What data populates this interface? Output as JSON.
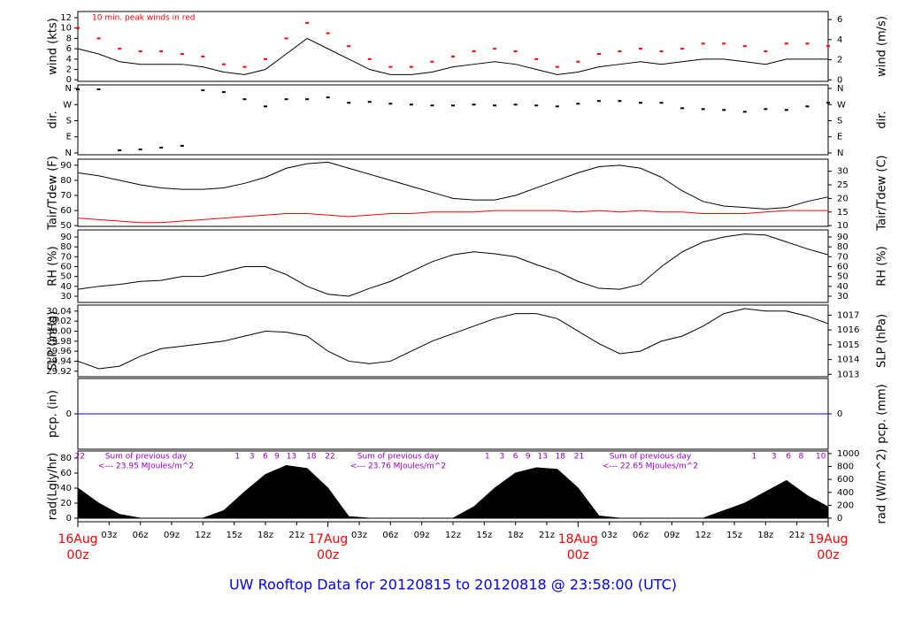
{
  "footer_title": "UW Rooftop Data for 20120815  to  20120818 @ 23:58:00  (UTC)",
  "chart_data": [
    {
      "type": "line",
      "ylabel": "wind (kts)",
      "y2label": "wind (m/s)",
      "annotation": "10 min. peak winds in red",
      "x": [
        0,
        2,
        4,
        6,
        8,
        10,
        12,
        14,
        16,
        18,
        20,
        22,
        24,
        26,
        28,
        30,
        32,
        34,
        36,
        38,
        40,
        42,
        44,
        46,
        48,
        50,
        52,
        54,
        56,
        58,
        60,
        62,
        64,
        66,
        68,
        70,
        72
      ],
      "xlim": [
        0,
        72
      ],
      "ylim": [
        -0.3,
        13.2
      ],
      "yticks": [
        0,
        2,
        4,
        6,
        8,
        10,
        12
      ],
      "y2lim": [
        -0.15,
        6.8
      ],
      "y2ticks": [
        0,
        2,
        4,
        6
      ],
      "series": [
        {
          "color": "#000000",
          "values": [
            6,
            5,
            3.5,
            3,
            3,
            3,
            2.5,
            1.5,
            1,
            2,
            5,
            8,
            6,
            4,
            2,
            1,
            1,
            1.5,
            2.5,
            3,
            3.5,
            3,
            2,
            1,
            1.5,
            2.5,
            3,
            3.5,
            3,
            3.5,
            4,
            4,
            3.5,
            3,
            4,
            4,
            4
          ]
        },
        {
          "color": "#ff0000",
          "style": "dots",
          "values": [
            10,
            8,
            6,
            5.5,
            5.5,
            5,
            4.5,
            3,
            2.5,
            4,
            8,
            11,
            9,
            6.5,
            4,
            2.5,
            2.5,
            3.5,
            4.5,
            5.5,
            6,
            5.5,
            4,
            2.5,
            3.5,
            5,
            5.5,
            6,
            5.5,
            6,
            7,
            7,
            6.5,
            5.5,
            7,
            7,
            6.5
          ]
        }
      ]
    },
    {
      "type": "scatter",
      "ylabel": "dir.",
      "y2label": "dir.",
      "x": [
        0,
        2,
        4,
        6,
        8,
        10,
        12,
        14,
        16,
        18,
        20,
        22,
        24,
        26,
        28,
        30,
        32,
        34,
        36,
        38,
        40,
        42,
        44,
        46,
        48,
        50,
        52,
        54,
        56,
        58,
        60,
        62,
        64,
        66,
        68,
        70,
        72
      ],
      "xlim": [
        0,
        72
      ],
      "ylim": [
        -10,
        380
      ],
      "yticks": [
        {
          "value": 0,
          "label": "N"
        },
        {
          "value": 90,
          "label": "E"
        },
        {
          "value": 180,
          "label": "S"
        },
        {
          "value": 270,
          "label": "W"
        },
        {
          "value": 360,
          "label": "N"
        }
      ],
      "y2lim": [
        -10,
        380
      ],
      "y2ticks": [
        {
          "value": 0,
          "label": "N"
        },
        {
          "value": 90,
          "label": "E"
        },
        {
          "value": 180,
          "label": "S"
        },
        {
          "value": 270,
          "label": "W"
        },
        {
          "value": 360,
          "label": "N"
        }
      ],
      "series": [
        {
          "color": "#000000",
          "values": [
            355,
            355,
            15,
            20,
            30,
            40,
            350,
            340,
            300,
            260,
            300,
            300,
            310,
            280,
            285,
            275,
            270,
            265,
            265,
            270,
            265,
            270,
            265,
            260,
            275,
            290,
            290,
            280,
            280,
            250,
            245,
            240,
            230,
            245,
            240,
            260,
            280
          ]
        }
      ]
    },
    {
      "type": "line",
      "ylabel": "Tair/Tdew (F)",
      "y2label": "Tair/Tdew (C)",
      "x": [
        0,
        2,
        4,
        6,
        8,
        10,
        12,
        14,
        16,
        18,
        20,
        22,
        24,
        26,
        28,
        30,
        32,
        34,
        36,
        38,
        40,
        42,
        44,
        46,
        48,
        50,
        52,
        54,
        56,
        58,
        60,
        62,
        64,
        66,
        68,
        70,
        72
      ],
      "xlim": [
        0,
        72
      ],
      "ylim": [
        49.5,
        94
      ],
      "yticks": [
        50,
        60,
        70,
        80,
        90
      ],
      "y2lim": [
        9.72,
        34.44
      ],
      "y2ticks": [
        10,
        15,
        20,
        25,
        30
      ],
      "series": [
        {
          "color": "#000000",
          "values": [
            85,
            83,
            80,
            77,
            75,
            74,
            74,
            75,
            78,
            82,
            88,
            91,
            92,
            88,
            84,
            80,
            76,
            72,
            68,
            67,
            67,
            70,
            75,
            80,
            85,
            89,
            90,
            88,
            82,
            73,
            66,
            63,
            62,
            61,
            62,
            66,
            69
          ]
        },
        {
          "color": "#ff0000",
          "values": [
            55,
            54,
            53,
            52,
            52,
            53,
            54,
            55,
            56,
            57,
            58,
            58,
            57,
            56,
            57,
            58,
            58,
            59,
            59,
            59,
            60,
            60,
            60,
            60,
            59,
            60,
            59,
            60,
            59,
            59,
            58,
            58,
            58,
            59,
            60,
            60,
            60
          ]
        }
      ]
    },
    {
      "type": "line",
      "ylabel": "RH (%)",
      "y2label": "RH (%)",
      "x": [
        0,
        2,
        4,
        6,
        8,
        10,
        12,
        14,
        16,
        18,
        20,
        22,
        24,
        26,
        28,
        30,
        32,
        34,
        36,
        38,
        40,
        42,
        44,
        46,
        48,
        50,
        52,
        54,
        56,
        58,
        60,
        62,
        64,
        66,
        68,
        70,
        72
      ],
      "xlim": [
        0,
        72
      ],
      "ylim": [
        23.7,
        97.2
      ],
      "yticks": [
        30,
        40,
        50,
        60,
        70,
        80,
        90
      ],
      "y2lim": [
        23.7,
        97.2
      ],
      "y2ticks": [
        30,
        40,
        50,
        60,
        70,
        80,
        90
      ],
      "series": [
        {
          "color": "#000000",
          "values": [
            37,
            40,
            42,
            45,
            46,
            50,
            50,
            55,
            60,
            60,
            52,
            40,
            32,
            30,
            38,
            45,
            55,
            65,
            72,
            75,
            73,
            70,
            62,
            55,
            45,
            38,
            37,
            42,
            60,
            75,
            85,
            90,
            93,
            92,
            85,
            78,
            72
          ]
        }
      ]
    },
    {
      "type": "line",
      "ylabel": "SLP (inHg)",
      "y2label": "SLP (hPa)",
      "x": [
        0,
        2,
        4,
        6,
        8,
        10,
        12,
        14,
        16,
        18,
        20,
        22,
        24,
        26,
        28,
        30,
        32,
        34,
        36,
        38,
        40,
        42,
        44,
        46,
        48,
        50,
        52,
        54,
        56,
        58,
        60,
        62,
        64,
        66,
        68,
        70,
        72
      ],
      "xlim": [
        0,
        72
      ],
      "ylim": [
        29.909,
        30.052
      ],
      "yticks": [
        29.92,
        29.94,
        29.96,
        29.98,
        {
          "value": 30.0,
          "label": "30.00"
        },
        30.02,
        30.04
      ],
      "y2lim": [
        1012.84,
        1017.68
      ],
      "y2ticks": [
        1013,
        1014,
        1015,
        1016,
        1017
      ],
      "series": [
        {
          "color": "#000000",
          "values": [
            29.94,
            29.925,
            29.93,
            29.95,
            29.965,
            29.97,
            29.975,
            29.98,
            29.99,
            30.0,
            29.998,
            29.99,
            29.96,
            29.94,
            29.935,
            29.94,
            29.96,
            29.98,
            29.995,
            30.01,
            30.025,
            30.035,
            30.035,
            30.025,
            30.0,
            29.975,
            29.955,
            29.96,
            29.98,
            29.99,
            30.01,
            30.035,
            30.045,
            30.04,
            30.04,
            30.03,
            30.015
          ]
        }
      ]
    },
    {
      "type": "line",
      "ylabel": "pcp. (in)",
      "y2label": "pcp. (mm)",
      "x": [
        0,
        2,
        4,
        6,
        8,
        10,
        12,
        14,
        16,
        18,
        20,
        22,
        24,
        26,
        28,
        30,
        32,
        34,
        36,
        38,
        40,
        42,
        44,
        46,
        48,
        50,
        52,
        54,
        56,
        58,
        60,
        62,
        64,
        66,
        68,
        70,
        72
      ],
      "xlim": [
        0,
        72
      ],
      "ylim": [
        -1,
        1
      ],
      "yticks": [
        0
      ],
      "y2lim": [
        -1,
        1
      ],
      "y2ticks": [
        0
      ],
      "series": [
        {
          "color": "#0000ff",
          "values": [
            0,
            0,
            0,
            0,
            0,
            0,
            0,
            0,
            0,
            0,
            0,
            0,
            0,
            0,
            0,
            0,
            0,
            0,
            0,
            0,
            0,
            0,
            0,
            0,
            0,
            0,
            0,
            0,
            0,
            0,
            0,
            0,
            0,
            0,
            0,
            0,
            0
          ]
        }
      ]
    },
    {
      "type": "area",
      "ylabel": "rad(Lgly/hr)",
      "y2label": "rad (W/m^2)",
      "x": [
        0,
        2,
        4,
        6,
        8,
        10,
        12,
        14,
        16,
        18,
        20,
        22,
        24,
        26,
        28,
        30,
        32,
        34,
        36,
        38,
        40,
        42,
        44,
        46,
        48,
        50,
        52,
        54,
        56,
        58,
        60,
        62,
        64,
        66,
        68,
        70,
        72
      ],
      "xlim": [
        0,
        72
      ],
      "ylim": [
        -4.7,
        89.4
      ],
      "yticks": [
        0,
        20,
        40,
        60,
        80
      ],
      "y2lim": [
        -54.7,
        1040
      ],
      "y2ticks": [
        0,
        200,
        400,
        600,
        800,
        1000
      ],
      "series": [
        {
          "color": "#000000",
          "values": [
            40,
            20,
            5,
            0,
            0,
            0,
            0,
            10,
            35,
            58,
            70,
            66,
            40,
            2,
            0,
            0,
            0,
            0,
            0,
            15,
            40,
            60,
            67,
            65,
            40,
            3,
            0,
            0,
            0,
            0,
            0,
            10,
            20,
            35,
            50,
            30,
            15
          ]
        }
      ],
      "xticks": [
        {
          "value": 3,
          "label": "03z"
        },
        {
          "value": 6,
          "label": "06z"
        },
        {
          "value": 9,
          "label": "09z"
        },
        {
          "value": 12,
          "label": "12z"
        },
        {
          "value": 15,
          "label": "15z"
        },
        {
          "value": 18,
          "label": "18z"
        },
        {
          "value": 21,
          "label": "21z"
        },
        {
          "value": 27,
          "label": "03z"
        },
        {
          "value": 30,
          "label": "06z"
        },
        {
          "value": 33,
          "label": "09z"
        },
        {
          "value": 36,
          "label": "12z"
        },
        {
          "value": 39,
          "label": "15z"
        },
        {
          "value": 42,
          "label": "18z"
        },
        {
          "value": 45,
          "label": "21z"
        },
        {
          "value": 51,
          "label": "03z"
        },
        {
          "value": 54,
          "label": "06z"
        },
        {
          "value": 57,
          "label": "09z"
        },
        {
          "value": 60,
          "label": "12z"
        },
        {
          "value": 63,
          "label": "15z"
        },
        {
          "value": 66,
          "label": "18z"
        },
        {
          "value": 69,
          "label": "21z"
        }
      ],
      "day_ticks": [
        {
          "value": 0,
          "label": "16Aug",
          "sublabel": "00z"
        },
        {
          "value": 24,
          "label": "17Aug",
          "sublabel": "00z"
        },
        {
          "value": 48,
          "label": "18Aug",
          "sublabel": "00z"
        },
        {
          "value": 72,
          "label": "19Aug",
          "sublabel": "00z"
        }
      ],
      "hour_labels": [
        {
          "value": 0.2,
          "label": "22"
        },
        {
          "value": 15.3,
          "label": "1"
        },
        {
          "value": 16.7,
          "label": "3"
        },
        {
          "value": 18.0,
          "label": "6"
        },
        {
          "value": 19.1,
          "label": "9"
        },
        {
          "value": 20.5,
          "label": "13"
        },
        {
          "value": 22.4,
          "label": "18"
        },
        {
          "value": 24.2,
          "label": "22"
        },
        {
          "value": 39.3,
          "label": "1"
        },
        {
          "value": 40.7,
          "label": "3"
        },
        {
          "value": 42.0,
          "label": "6"
        },
        {
          "value": 43.2,
          "label": "9"
        },
        {
          "value": 44.6,
          "label": "13"
        },
        {
          "value": 46.3,
          "label": "18"
        },
        {
          "value": 48.1,
          "label": "21"
        },
        {
          "value": 64.9,
          "label": "1"
        },
        {
          "value": 66.8,
          "label": "3"
        },
        {
          "value": 68.2,
          "label": "6"
        },
        {
          "value": 69.4,
          "label": "8"
        },
        {
          "value": 71.3,
          "label": "10"
        }
      ],
      "daily_sums": [
        {
          "heading": "Sum of previous day",
          "text": "<--- 23.95 MJoules/m^2"
        },
        {
          "heading": "Sum of previous day",
          "text": "<--- 23.76 MJoules/m^2"
        },
        {
          "heading": "Sum of previous day",
          "text": "<--- 22.65 MJoules/m^2"
        }
      ]
    }
  ]
}
